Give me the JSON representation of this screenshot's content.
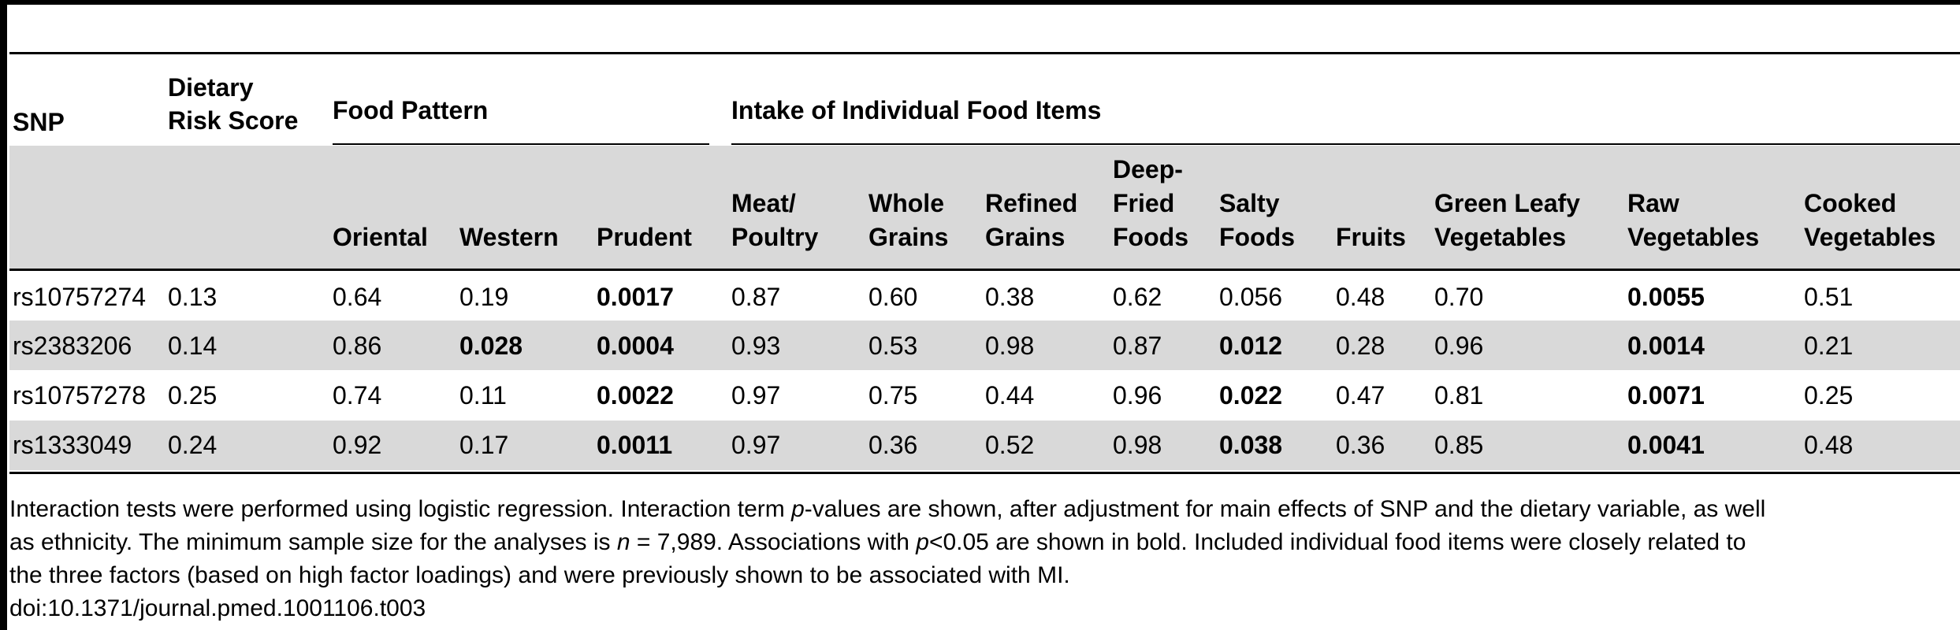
{
  "table": {
    "group_headers": {
      "snp": "SNP",
      "dietary_risk_score": [
        "Dietary",
        "Risk Score"
      ],
      "food_pattern": "Food Pattern",
      "individual_items": "Intake of Individual Food Items"
    },
    "sub_headers": {
      "oriental": [
        "Oriental"
      ],
      "western": [
        "Western"
      ],
      "prudent": [
        "Prudent"
      ],
      "meat": [
        "Meat/",
        "Poultry"
      ],
      "whole_grains": [
        "Whole",
        "Grains"
      ],
      "refined_grains": [
        "Refined",
        "Grains"
      ],
      "deep_fried": [
        "Deep-",
        "Fried",
        "Foods"
      ],
      "salty": [
        "Salty",
        "Foods"
      ],
      "fruits": [
        "Fruits"
      ],
      "green_leafy": [
        "Green Leafy",
        "Vegetables"
      ],
      "raw_veg": [
        "Raw",
        "Vegetables"
      ],
      "cooked_veg": [
        "Cooked",
        "Vegetables"
      ]
    },
    "rows": [
      {
        "snp": "rs10757274",
        "cells": [
          "0.13",
          "0.64",
          "0.19",
          "0.0017",
          "0.87",
          "0.60",
          "0.38",
          "0.62",
          "0.056",
          "0.48",
          "0.70",
          "0.0055",
          "0.51"
        ],
        "bold": [
          false,
          false,
          false,
          true,
          false,
          false,
          false,
          false,
          false,
          false,
          false,
          true,
          false
        ]
      },
      {
        "snp": "rs2383206",
        "cells": [
          "0.14",
          "0.86",
          "0.028",
          "0.0004",
          "0.93",
          "0.53",
          "0.98",
          "0.87",
          "0.012",
          "0.28",
          "0.96",
          "0.0014",
          "0.21"
        ],
        "bold": [
          false,
          false,
          true,
          true,
          false,
          false,
          false,
          false,
          true,
          false,
          false,
          true,
          false
        ]
      },
      {
        "snp": "rs10757278",
        "cells": [
          "0.25",
          "0.74",
          "0.11",
          "0.0022",
          "0.97",
          "0.75",
          "0.44",
          "0.96",
          "0.022",
          "0.47",
          "0.81",
          "0.0071",
          "0.25"
        ],
        "bold": [
          false,
          false,
          false,
          true,
          false,
          false,
          false,
          false,
          true,
          false,
          false,
          true,
          false
        ]
      },
      {
        "snp": "rs1333049",
        "cells": [
          "0.24",
          "0.92",
          "0.17",
          "0.0011",
          "0.97",
          "0.36",
          "0.52",
          "0.98",
          "0.038",
          "0.36",
          "0.85",
          "0.0041",
          "0.48"
        ],
        "bold": [
          false,
          false,
          false,
          true,
          false,
          false,
          false,
          false,
          true,
          false,
          false,
          true,
          false
        ]
      }
    ]
  },
  "footnote": {
    "line1_a": "Interaction tests were performed using logistic regression. Interaction term ",
    "line1_p": "p",
    "line1_b": "-values are shown, after adjustment for main effects of SNP and the dietary variable, as well",
    "line2_a": "as ethnicity. The minimum sample size for the analyses is ",
    "line2_n": "n",
    "line2_b": " = 7,989. Associations with ",
    "line2_p": "p",
    "line2_c": "<0.05 are shown in bold. Included individual food items were closely related to",
    "line3": "the three factors (based on high factor loadings) and were previously shown to be associated with MI.",
    "doi": "doi:10.1371/journal.pmed.1001106.t003"
  }
}
